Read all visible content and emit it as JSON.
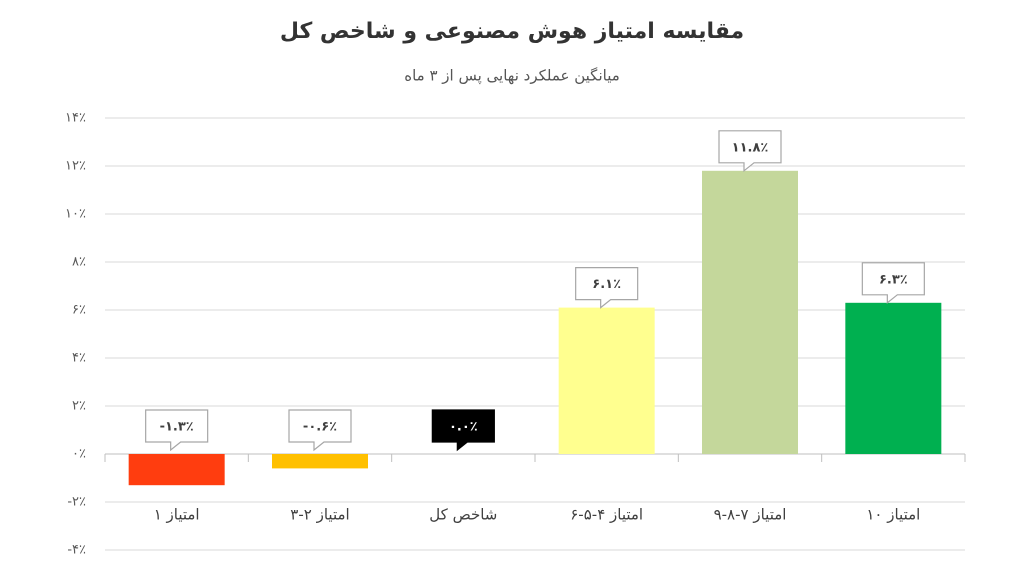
{
  "chart_data": {
    "type": "bar",
    "title": "مقایسه امتیاز هوش مصنوعی و شاخص کل",
    "subtitle": "میانگین عملکرد نهایی پس از ۳ ماه",
    "categories": [
      "امتیاز ۱",
      "امتیاز ۲-۳",
      "شاخص کل",
      "امتیاز ۴-۵-۶",
      "امتیاز ۷-۸-۹",
      "امتیاز ۱۰"
    ],
    "values": [
      -1.3,
      -0.6,
      0.0,
      6.1,
      11.8,
      6.3
    ],
    "value_labels": [
      "-۱.۳٪",
      "-۰.۶٪",
      "۰.۰٪",
      "۶.۱٪",
      "۱۱.۸٪",
      "۶.۳٪"
    ],
    "colors": [
      "#ff3d0f",
      "#ffc000",
      "#000000",
      "#ffff8f",
      "#c4d79b",
      "#00b050"
    ],
    "value_label_fill": [
      "#ffffff",
      "#ffffff",
      "#000000",
      "#ffffff",
      "#ffffff",
      "#ffffff"
    ],
    "ylim": [
      -4,
      14
    ],
    "yticks": [
      {
        "value": -4,
        "label": "-۴٪"
      },
      {
        "value": -2,
        "label": "-۲٪"
      },
      {
        "value": 0,
        "label": "۰٪"
      },
      {
        "value": 2,
        "label": "۲٪"
      },
      {
        "value": 4,
        "label": "۴٪"
      },
      {
        "value": 6,
        "label": "۶٪"
      },
      {
        "value": 8,
        "label": "۸٪"
      },
      {
        "value": 10,
        "label": "۱۰٪"
      },
      {
        "value": 12,
        "label": "۱۲٪"
      },
      {
        "value": 14,
        "label": "۱۴٪"
      }
    ],
    "grid": true
  }
}
